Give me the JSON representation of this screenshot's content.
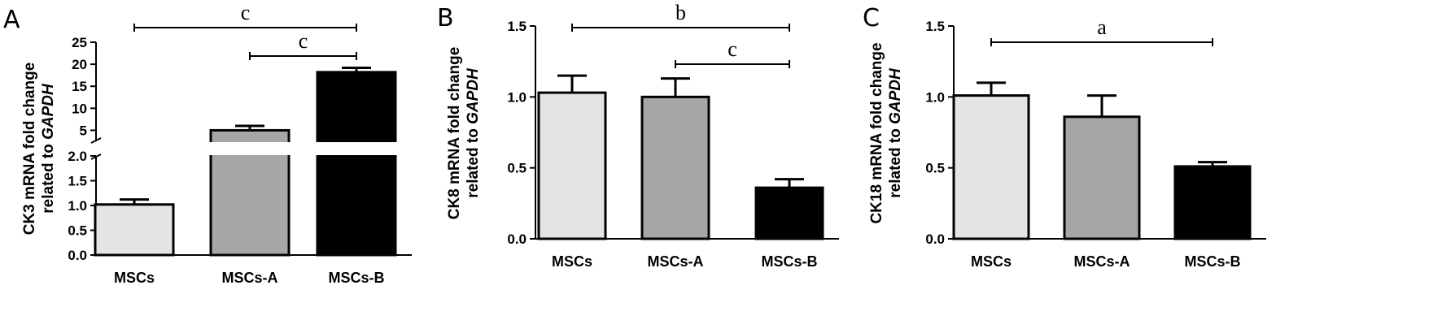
{
  "chart_data": [
    {
      "panel": "A",
      "type": "bar",
      "categories": [
        "MSCs",
        "MSCs-A",
        "MSCs-B"
      ],
      "values": [
        1.02,
        5.0,
        18.2
      ],
      "errors": [
        0.1,
        1.0,
        1.0
      ],
      "colors": [
        "#e4e4e4",
        "#a6a6a6",
        "#000000"
      ],
      "ylabel_line1": "CK3 mRNA fold change",
      "ylabel_line2_prefix": "related to ",
      "ylabel_line2_gene": "GAPDH",
      "axis_break": true,
      "lower_range": [
        0,
        2.0
      ],
      "lower_ticks": [
        "0.0",
        "0.5",
        "1.0",
        "1.5",
        "2.0"
      ],
      "upper_range": [
        2.5,
        25
      ],
      "upper_ticks": [
        "5",
        "10",
        "15",
        "20",
        "25"
      ],
      "significance": [
        {
          "from": 0,
          "to": 2,
          "label": "c"
        },
        {
          "from": 1,
          "to": 2,
          "label": "c"
        }
      ]
    },
    {
      "panel": "B",
      "type": "bar",
      "categories": [
        "MSCs",
        "MSCs-A",
        "MSCs-B"
      ],
      "values": [
        1.03,
        1.0,
        0.36
      ],
      "errors": [
        0.12,
        0.13,
        0.06
      ],
      "colors": [
        "#e4e4e4",
        "#a6a6a6",
        "#000000"
      ],
      "ylabel_line1": "CK8 mRNA fold change",
      "ylabel_line2_prefix": "related to ",
      "ylabel_line2_gene": "GAPDH",
      "ylim": [
        0,
        1.5
      ],
      "ticks": [
        "0.0",
        "0.5",
        "1.0",
        "1.5"
      ],
      "significance": [
        {
          "from": 0,
          "to": 2,
          "label": "b"
        },
        {
          "from": 1,
          "to": 2,
          "label": "c"
        }
      ]
    },
    {
      "panel": "C",
      "type": "bar",
      "categories": [
        "MSCs",
        "MSCs-A",
        "MSCs-B"
      ],
      "values": [
        1.01,
        0.86,
        0.51
      ],
      "errors": [
        0.09,
        0.15,
        0.03
      ],
      "colors": [
        "#e4e4e4",
        "#a6a6a6",
        "#000000"
      ],
      "ylabel_line1": "CK18 mRNA fold change",
      "ylabel_line2_prefix": "related to ",
      "ylabel_line2_gene": "GAPDH",
      "ylim": [
        0,
        1.5
      ],
      "ticks": [
        "0.0",
        "0.5",
        "1.0",
        "1.5"
      ],
      "significance": [
        {
          "from": 0,
          "to": 2,
          "label": "a"
        }
      ]
    }
  ]
}
